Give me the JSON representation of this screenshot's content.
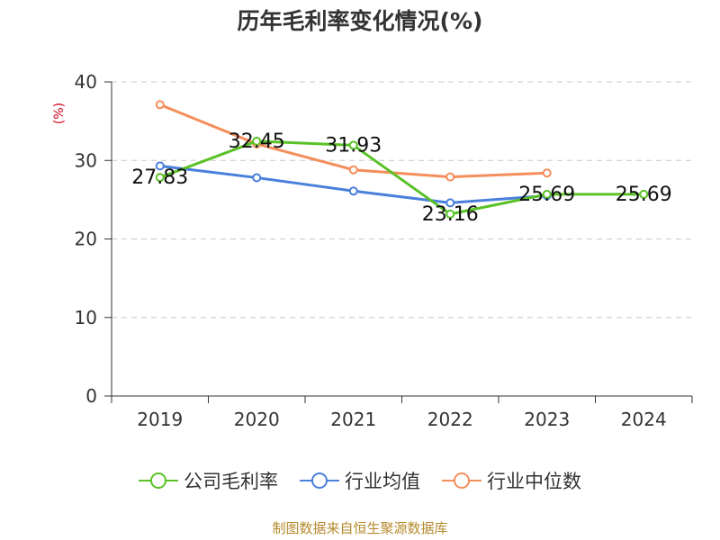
{
  "chart_data": {
    "type": "line",
    "title": "历年毛利率变化情况(%)",
    "ylabel": "(%)",
    "xlabel": "",
    "categories": [
      "2019",
      "2020",
      "2021",
      "2022",
      "2023",
      "2024"
    ],
    "ylim": [
      0,
      40
    ],
    "yticks": [
      0,
      10,
      20,
      30,
      40
    ],
    "grid": true,
    "legend_position": "bottom",
    "series": [
      {
        "name": "公司毛利率",
        "color": "#5ac127",
        "values": [
          27.83,
          32.45,
          31.93,
          23.16,
          25.69,
          25.69
        ],
        "labels": [
          "27.83",
          "32.45",
          "31.93",
          "23.16",
          "25.69",
          "25.69"
        ]
      },
      {
        "name": "行业均值",
        "color": "#4a7fdb",
        "values": [
          29.3,
          27.8,
          26.1,
          24.6,
          25.5,
          null
        ]
      },
      {
        "name": "行业中位数",
        "color": "#f48e5b",
        "values": [
          37.1,
          32.1,
          28.8,
          27.9,
          28.4,
          null
        ]
      }
    ]
  },
  "source": "制图数据来自恒生聚源数据库"
}
